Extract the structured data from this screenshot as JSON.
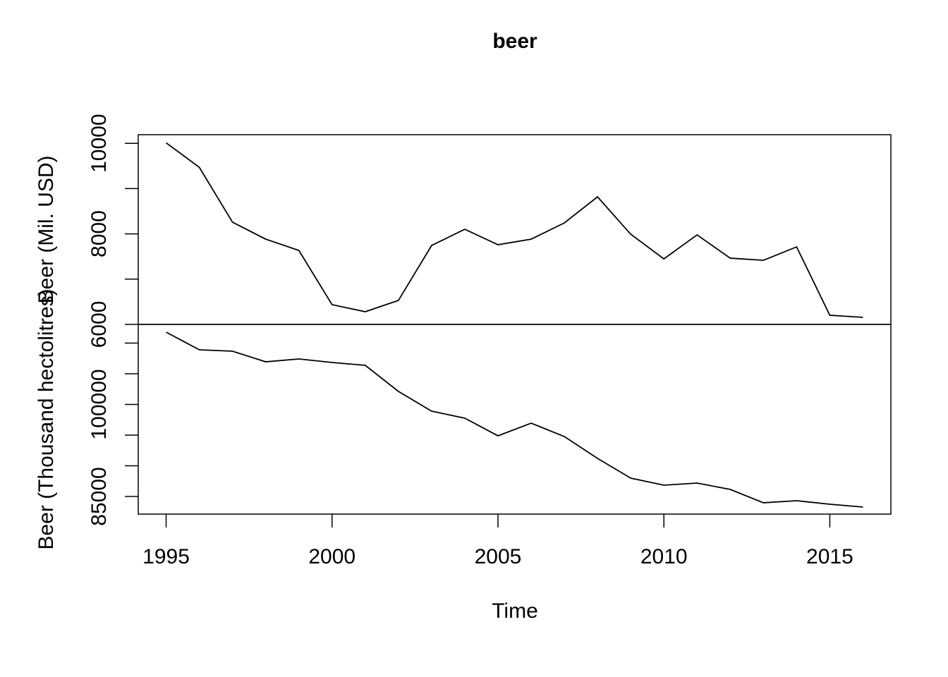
{
  "chart_data": [
    {
      "type": "line",
      "title": "beer",
      "ylabel": "Beer (Mil. USD)",
      "color": "#000000",
      "x": [
        1995,
        1996,
        1997,
        1998,
        1999,
        2000,
        2001,
        2002,
        2003,
        2004,
        2005,
        2006,
        2007,
        2008,
        2009,
        2010,
        2011,
        2012,
        2013,
        2014,
        2015,
        2016
      ],
      "values": [
        10010,
        9470,
        8257,
        7883,
        7634,
        6436,
        6280,
        6529,
        7743,
        8101,
        7759,
        7883,
        8241,
        8817,
        7992,
        7447,
        7977,
        7463,
        7416,
        7712,
        6202,
        6156
      ],
      "xlim": [
        1994.16,
        2016.84
      ],
      "ylim": [
        6000,
        10190
      ],
      "yticks": [
        6000,
        8000,
        10000
      ],
      "minor_yticks": [
        7000,
        9000
      ]
    },
    {
      "type": "line",
      "ylabel": "Beer (Thousand hectolitres)",
      "xlabel": "Time",
      "color": "#000000",
      "x": [
        1995,
        1996,
        1997,
        1998,
        1999,
        2000,
        2001,
        2002,
        2003,
        2004,
        2005,
        2006,
        2007,
        2008,
        2009,
        2010,
        2011,
        2012,
        2013,
        2014,
        2015,
        2016
      ],
      "values": [
        111780,
        108910,
        108680,
        106950,
        107410,
        106840,
        106380,
        102130,
        98910,
        97760,
        94890,
        96950,
        94770,
        91210,
        87990,
        86840,
        87180,
        86150,
        83970,
        84310,
        83740,
        83280
      ],
      "xlim": [
        1994.16,
        2016.84
      ],
      "xticks": [
        1995,
        2000,
        2005,
        2010,
        2015
      ],
      "ylim": [
        82126,
        113046
      ],
      "yticks": [
        85000,
        100000
      ],
      "minor_yticks": [
        90000,
        95000,
        105000,
        110000
      ]
    }
  ]
}
